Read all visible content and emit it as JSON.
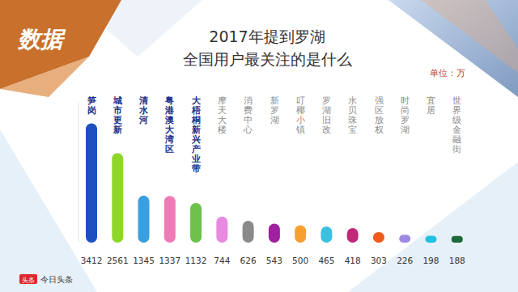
{
  "chart_data": {
    "type": "bar",
    "badge": "数据",
    "title": "2017年提到罗湖\n全国用户最关注的是什么",
    "unit": "单位：万",
    "source": "今日头条",
    "logo_icon": "头条",
    "categories": [
      "笋岗",
      "城市更新",
      "清水河",
      "粤港澳大湾区",
      "大梧桐新兴产业带",
      "摩天大楼",
      "消费中心",
      "新罗湖",
      "叮椰小镇",
      "罗湖旧改",
      "水贝珠宝",
      "强区放权",
      "时尚罗湖",
      "宜居",
      "世界级金融街"
    ],
    "values": [
      3412,
      2561,
      1345,
      1337,
      1132,
      744,
      626,
      543,
      500,
      465,
      418,
      303,
      226,
      198,
      188
    ],
    "colors": [
      "#1e4fc0",
      "#8fd62a",
      "#3a9fe0",
      "#f07ab5",
      "#6cc24a",
      "#e88ae0",
      "#8a8a8a",
      "#a020a0",
      "#f7a030",
      "#3cc0e0",
      "#c0287a",
      "#f05a1a",
      "#a08ae0",
      "#20c0e0",
      "#1a6a3a"
    ],
    "ylim": [
      0,
      4000
    ],
    "data_labels": true,
    "tick_labels": "x",
    "grid": false
  }
}
